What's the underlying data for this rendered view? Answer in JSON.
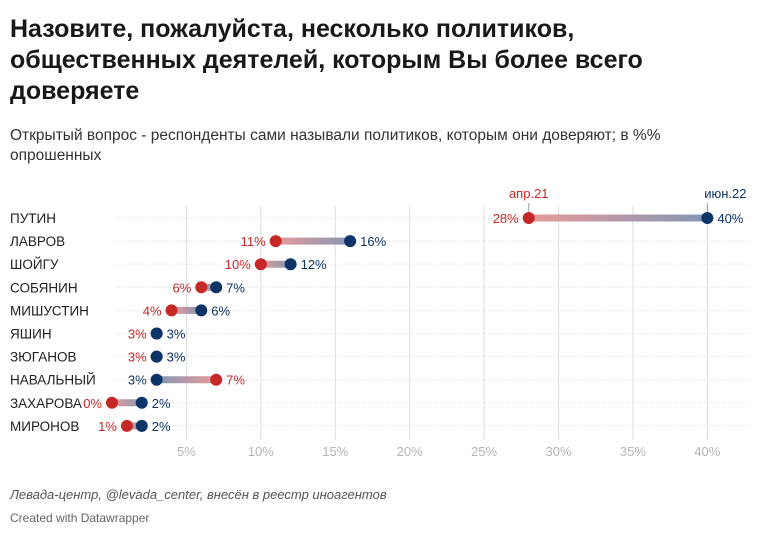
{
  "title": "Назовите, пожалуйста, несколько политиков, общественных деятелей, которым Вы более всего доверяете",
  "subtitle": "Открытый вопрос - респонденты сами называли политиков, которым они доверяют; в %% опрошенных",
  "source": "Левада-центр, @levada_center, внесён в реестр иноагентов",
  "credit": "Created with Datawrapper",
  "colors": {
    "apr21": "#c62828",
    "jun22": "#0d3466",
    "apr21_light": "#e79a9a",
    "jun22_light": "#8497b5",
    "grid": "#dddddd",
    "axis_text": "#b5b5b5"
  },
  "chart_data": {
    "type": "dot-range",
    "categories": [
      "ПУТИН",
      "ЛАВРОВ",
      "ШОЙГУ",
      "СОБЯНИН",
      "МИШУСТИН",
      "ЯШИН",
      "ЗЮГАНОВ",
      "НАВАЛЬНЫЙ",
      "ЗАХАРОВА",
      "МИРОНОВ"
    ],
    "series": [
      {
        "name": "апр.21",
        "values": [
          28,
          11,
          10,
          6,
          4,
          3,
          3,
          7,
          0,
          1
        ],
        "labels": [
          "28%",
          "11%",
          "10%",
          "6%",
          "4%",
          "3%",
          "3%",
          "7%",
          "0%",
          "1%"
        ]
      },
      {
        "name": "июн.22",
        "values": [
          40,
          16,
          12,
          7,
          6,
          3,
          3,
          3,
          2,
          2
        ],
        "labels": [
          "40%",
          "16%",
          "12%",
          "7%",
          "6%",
          "3%",
          "3%",
          "3%",
          "2%",
          "2%"
        ]
      }
    ],
    "xlim": [
      0,
      43
    ],
    "xticks": [
      5,
      10,
      15,
      20,
      25,
      30,
      35,
      40
    ],
    "xtick_labels": [
      "5%",
      "10%",
      "15%",
      "20%",
      "25%",
      "30%",
      "35%",
      "40%"
    ],
    "grid": true,
    "legend": "labels above top row"
  }
}
